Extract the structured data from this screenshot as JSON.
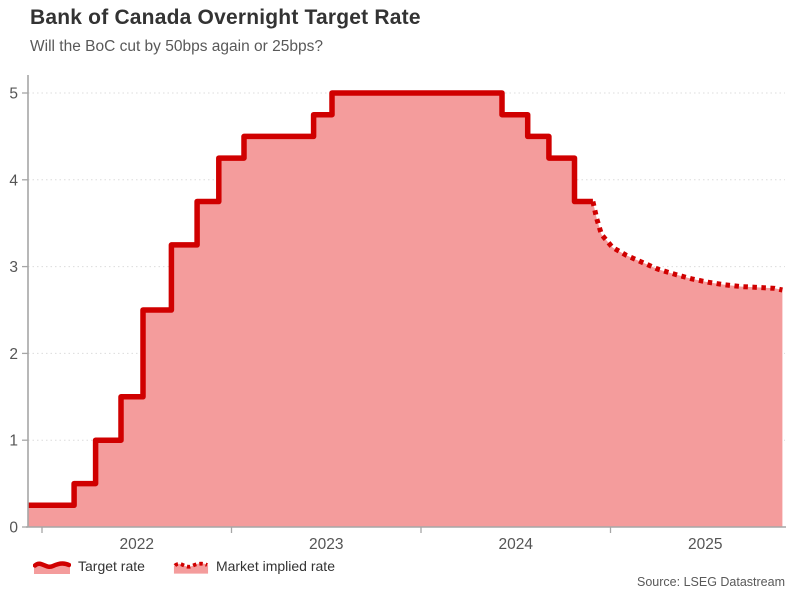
{
  "header": {
    "title": "Bank of Canada Overnight Target Rate",
    "subtitle": "Will the BoC cut by 50bps again or 25bps?"
  },
  "source": "Source: LSEG Datastream",
  "legend": {
    "items": [
      {
        "label": "Target rate",
        "style": "solid"
      },
      {
        "label": "Market implied rate",
        "style": "dotted"
      }
    ]
  },
  "colors": {
    "line": "#d00000",
    "fill": "#f49c9c",
    "axis": "#a6a6a6",
    "grid": "#dcdcdc",
    "title_text": "#333333",
    "tick_text": "#555555",
    "muted_text": "#595959"
  },
  "chart_data": {
    "type": "area",
    "title": "Bank of Canada Overnight Target Rate",
    "subtitle": "Will the BoC cut by 50bps again or 25bps?",
    "xlabel": "",
    "ylabel": "",
    "ylim": [
      0,
      5.2
    ],
    "yticks": [
      0,
      1,
      2,
      3,
      4,
      5
    ],
    "xticks": [
      2022,
      2023,
      2024,
      2025
    ],
    "xlim": [
      "2021-11-26",
      "2025-12-01"
    ],
    "grid": "horizontal-dotted",
    "legend_position": "bottom-left",
    "series": [
      {
        "name": "Target rate",
        "style": "solid-step",
        "start": {
          "date": "2021-11-26",
          "rate": 0.25
        },
        "steps": [
          [
            "2022-03-02",
            0.5
          ],
          [
            "2022-04-13",
            1.0
          ],
          [
            "2022-06-01",
            1.5
          ],
          [
            "2022-07-13",
            2.5
          ],
          [
            "2022-09-07",
            3.25
          ],
          [
            "2022-10-26",
            3.75
          ],
          [
            "2022-12-07",
            4.25
          ],
          [
            "2023-01-25",
            4.5
          ],
          [
            "2023-06-07",
            4.75
          ],
          [
            "2023-07-12",
            5.0
          ],
          [
            "2024-06-05",
            4.75
          ],
          [
            "2024-07-24",
            4.5
          ],
          [
            "2024-09-04",
            4.25
          ],
          [
            "2024-10-23",
            3.75
          ]
        ],
        "end": "2024-11-28"
      },
      {
        "name": "Market implied rate",
        "style": "dotted",
        "points": [
          [
            "2024-11-28",
            3.75
          ],
          [
            "2024-12-05",
            3.55
          ],
          [
            "2024-12-14",
            3.37
          ],
          [
            "2025-01-05",
            3.22
          ],
          [
            "2025-02-01",
            3.13
          ],
          [
            "2025-03-01",
            3.05
          ],
          [
            "2025-04-01",
            2.97
          ],
          [
            "2025-05-04",
            2.91
          ],
          [
            "2025-06-05",
            2.86
          ],
          [
            "2025-07-06",
            2.82
          ],
          [
            "2025-08-08",
            2.79
          ],
          [
            "2025-09-10",
            2.77
          ],
          [
            "2025-10-11",
            2.76
          ],
          [
            "2025-11-13",
            2.75
          ],
          [
            "2025-11-28",
            2.73
          ]
        ]
      }
    ]
  }
}
